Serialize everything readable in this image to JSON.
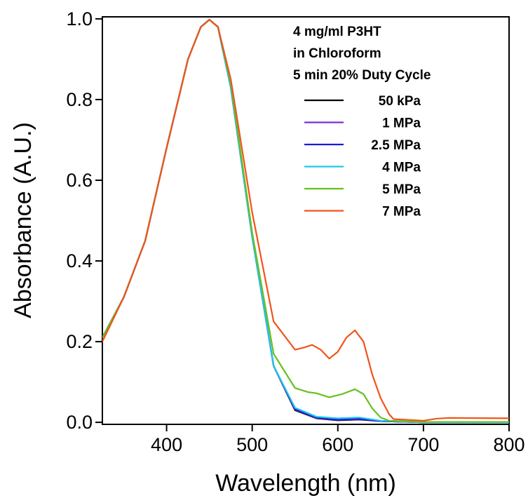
{
  "chart_data": {
    "type": "line",
    "xlabel": "Wavelength (nm)",
    "ylabel": "Absorbance (A.U.)",
    "xlim": [
      325,
      800
    ],
    "ylim": [
      -0.005,
      1.005
    ],
    "x_ticks": [
      400,
      500,
      600,
      700,
      800
    ],
    "x_tick_labels": [
      "400",
      "500",
      "600",
      "700",
      "800"
    ],
    "y_ticks": [
      0.0,
      0.2,
      0.4,
      0.6,
      0.8,
      1.0
    ],
    "y_tick_labels": [
      "0.0",
      "0.2",
      "0.4",
      "0.6",
      "0.8",
      "1.0"
    ],
    "grid": false,
    "legend_position": "top-right",
    "legend_title_lines": [
      "4 mg/ml P3HT",
      "in Chloroform",
      "5 min 20% Duty Cycle"
    ],
    "series": [
      {
        "name": "50 kPa",
        "color": "#000000",
        "x": [
          325,
          350,
          375,
          400,
          425,
          440,
          450,
          460,
          475,
          500,
          525,
          550,
          575,
          600,
          625,
          650,
          700,
          800
        ],
        "y": [
          0.21,
          0.31,
          0.45,
          0.68,
          0.9,
          0.98,
          0.998,
          0.98,
          0.83,
          0.46,
          0.14,
          0.03,
          0.01,
          0.005,
          0.007,
          0.003,
          0.0,
          0.0
        ]
      },
      {
        "name": "1 MPa",
        "color": "#7b2fd6",
        "x": [
          325,
          350,
          375,
          400,
          425,
          440,
          450,
          460,
          475,
          500,
          525,
          550,
          575,
          600,
          625,
          650,
          700,
          800
        ],
        "y": [
          0.21,
          0.31,
          0.45,
          0.68,
          0.9,
          0.98,
          0.998,
          0.98,
          0.83,
          0.46,
          0.14,
          0.032,
          0.011,
          0.006,
          0.008,
          0.003,
          0.0,
          0.0
        ]
      },
      {
        "name": "2.5 MPa",
        "color": "#1a1adb",
        "x": [
          325,
          350,
          375,
          400,
          425,
          440,
          450,
          460,
          475,
          500,
          525,
          550,
          575,
          600,
          625,
          650,
          700,
          800
        ],
        "y": [
          0.21,
          0.31,
          0.45,
          0.68,
          0.9,
          0.98,
          0.998,
          0.98,
          0.83,
          0.46,
          0.14,
          0.033,
          0.012,
          0.007,
          0.009,
          0.003,
          0.0,
          0.0
        ]
      },
      {
        "name": "4 MPa",
        "color": "#22c8e8",
        "x": [
          325,
          350,
          375,
          400,
          425,
          440,
          450,
          460,
          475,
          500,
          525,
          550,
          575,
          600,
          625,
          650,
          700,
          800
        ],
        "y": [
          0.21,
          0.31,
          0.45,
          0.68,
          0.9,
          0.98,
          0.998,
          0.98,
          0.83,
          0.46,
          0.14,
          0.036,
          0.014,
          0.01,
          0.012,
          0.004,
          0.0,
          0.0
        ]
      },
      {
        "name": "5 MPa",
        "color": "#66c01e",
        "x": [
          325,
          350,
          375,
          400,
          425,
          440,
          450,
          460,
          475,
          500,
          525,
          550,
          565,
          575,
          590,
          605,
          620,
          630,
          640,
          650,
          660,
          700,
          800
        ],
        "y": [
          0.21,
          0.31,
          0.45,
          0.68,
          0.9,
          0.98,
          0.998,
          0.98,
          0.84,
          0.47,
          0.17,
          0.085,
          0.075,
          0.072,
          0.062,
          0.07,
          0.082,
          0.07,
          0.035,
          0.012,
          0.004,
          0.001,
          0.001
        ]
      },
      {
        "name": "7 MPa",
        "color": "#f0541c",
        "x": [
          325,
          350,
          375,
          400,
          425,
          440,
          450,
          460,
          475,
          500,
          525,
          550,
          560,
          570,
          580,
          590,
          600,
          610,
          620,
          630,
          640,
          650,
          660,
          665,
          700,
          715,
          730,
          800
        ],
        "y": [
          0.2,
          0.31,
          0.45,
          0.68,
          0.9,
          0.98,
          0.998,
          0.98,
          0.85,
          0.52,
          0.25,
          0.18,
          0.185,
          0.192,
          0.18,
          0.158,
          0.175,
          0.21,
          0.228,
          0.2,
          0.12,
          0.06,
          0.02,
          0.008,
          0.004,
          0.009,
          0.011,
          0.01
        ]
      }
    ]
  }
}
